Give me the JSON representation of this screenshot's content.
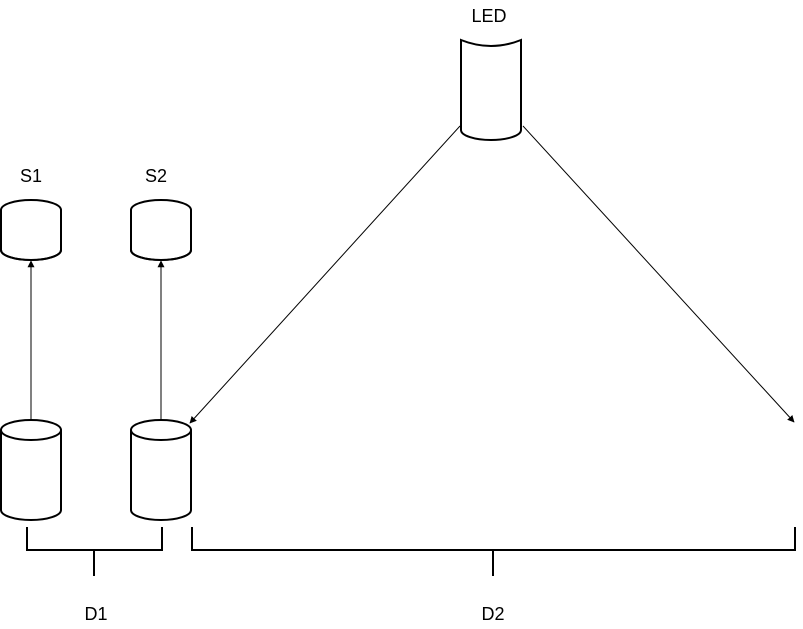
{
  "diagram": {
    "labels": {
      "led": "LED",
      "s1": "S1",
      "s2": "S2",
      "d1": "D1",
      "d2": "D2"
    }
  }
}
